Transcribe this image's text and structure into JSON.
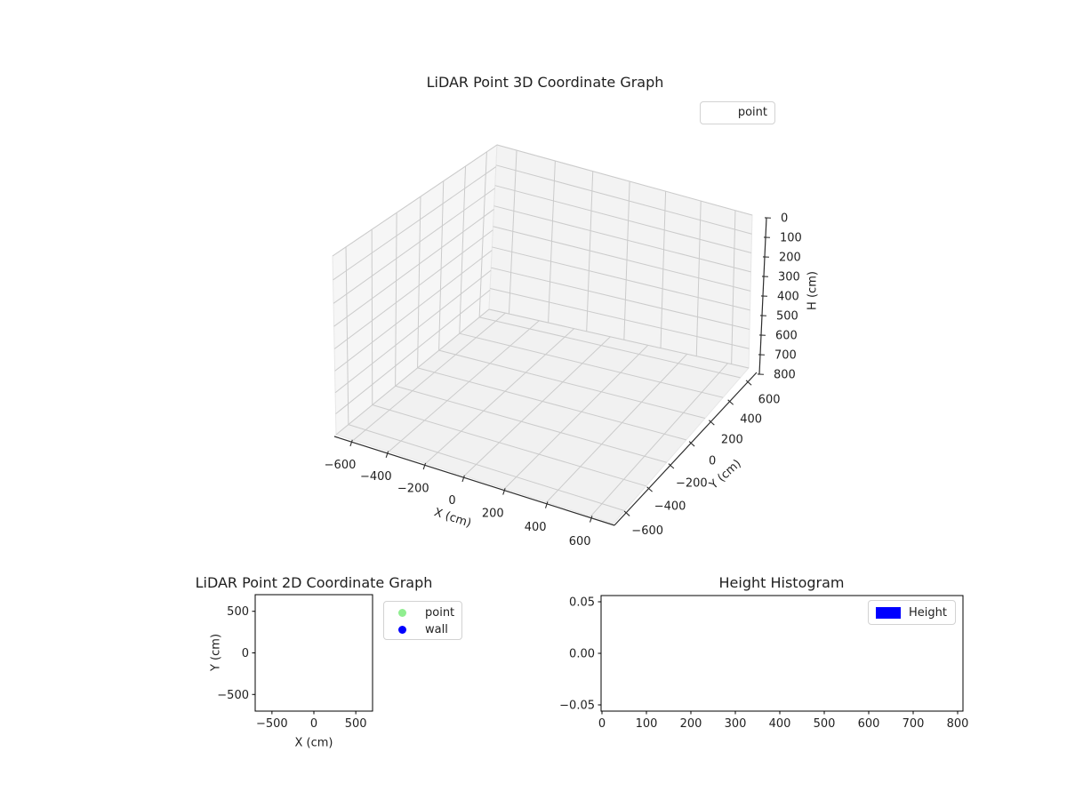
{
  "figure": {
    "background": "#ffffff"
  },
  "plot3d": {
    "title": "LiDAR Point 3D Coordinate Graph",
    "xlabel": "X (cm)",
    "ylabel": "Y (cm)",
    "zlabel": "H (cm)",
    "xticks": [
      -600,
      -400,
      -200,
      0,
      200,
      400,
      600
    ],
    "xtick_labels": [
      "−600",
      "−400",
      "−200",
      "0",
      "200",
      "400",
      "600"
    ],
    "yticks": [
      -600,
      -400,
      -200,
      0,
      200,
      400,
      600
    ],
    "ytick_labels": [
      "−600",
      "−400",
      "−200",
      "0",
      "200",
      "400",
      "600"
    ],
    "zticks": [
      0,
      100,
      200,
      300,
      400,
      500,
      600,
      700,
      800
    ],
    "ztick_labels": [
      "0",
      "100",
      "200",
      "300",
      "400",
      "500",
      "600",
      "700",
      "800"
    ],
    "legend": {
      "items": [
        {
          "label": "point"
        }
      ]
    }
  },
  "plot2d": {
    "title": "LiDAR Point 2D Coordinate Graph",
    "xlabel": "X (cm)",
    "ylabel": "Y (cm)",
    "xticks": [
      -500,
      0,
      500
    ],
    "xtick_labels": [
      "−500",
      "0",
      "500"
    ],
    "yticks": [
      500,
      0,
      -500
    ],
    "ytick_labels": [
      "500",
      "0",
      "−500"
    ],
    "legend": {
      "items": [
        {
          "label": "point",
          "color": "#90EE90"
        },
        {
          "label": "wall",
          "color": "#0000FF"
        }
      ]
    }
  },
  "hist": {
    "title": "Height Histogram",
    "xticks": [
      0,
      100,
      200,
      300,
      400,
      500,
      600,
      700,
      800
    ],
    "xtick_labels": [
      "0",
      "100",
      "200",
      "300",
      "400",
      "500",
      "600",
      "700",
      "800"
    ],
    "yticks": [
      0.05,
      0,
      -0.05
    ],
    "ytick_labels": [
      "0.05",
      "0.00",
      "−0.05"
    ],
    "legend": {
      "items": [
        {
          "label": "Height",
          "color": "#0000FF"
        }
      ]
    }
  },
  "chart_data": [
    {
      "type": "scatter",
      "projection": "3d",
      "title": "LiDAR Point 3D Coordinate Graph",
      "xlabel": "X (cm)",
      "ylabel": "Y (cm)",
      "zlabel": "H (cm)",
      "xlim": [
        -700,
        700
      ],
      "ylim": [
        -700,
        700
      ],
      "zlim": [
        0,
        800
      ],
      "zaxis_inverted": true,
      "grid": true,
      "legend_position": "upper right",
      "series": [
        {
          "name": "point",
          "points": []
        }
      ]
    },
    {
      "type": "scatter",
      "title": "LiDAR Point 2D Coordinate Graph",
      "xlabel": "X (cm)",
      "ylabel": "Y (cm)",
      "xlim": [
        -700,
        700
      ],
      "ylim": [
        -700,
        700
      ],
      "grid": false,
      "legend_position": "upper right",
      "series": [
        {
          "name": "point",
          "color": "#90EE90",
          "points": []
        },
        {
          "name": "wall",
          "color": "#0000FF",
          "points": []
        }
      ]
    },
    {
      "type": "bar",
      "title": "Height Histogram",
      "xlim": [
        -2,
        812
      ],
      "ylim": [
        -0.055,
        0.055
      ],
      "xticks": [
        0,
        100,
        200,
        300,
        400,
        500,
        600,
        700,
        800
      ],
      "yticks": [
        0.05,
        0,
        -0.05
      ],
      "grid": false,
      "legend_position": "upper right",
      "series": [
        {
          "name": "Height",
          "color": "#0000FF",
          "values": []
        }
      ]
    }
  ]
}
